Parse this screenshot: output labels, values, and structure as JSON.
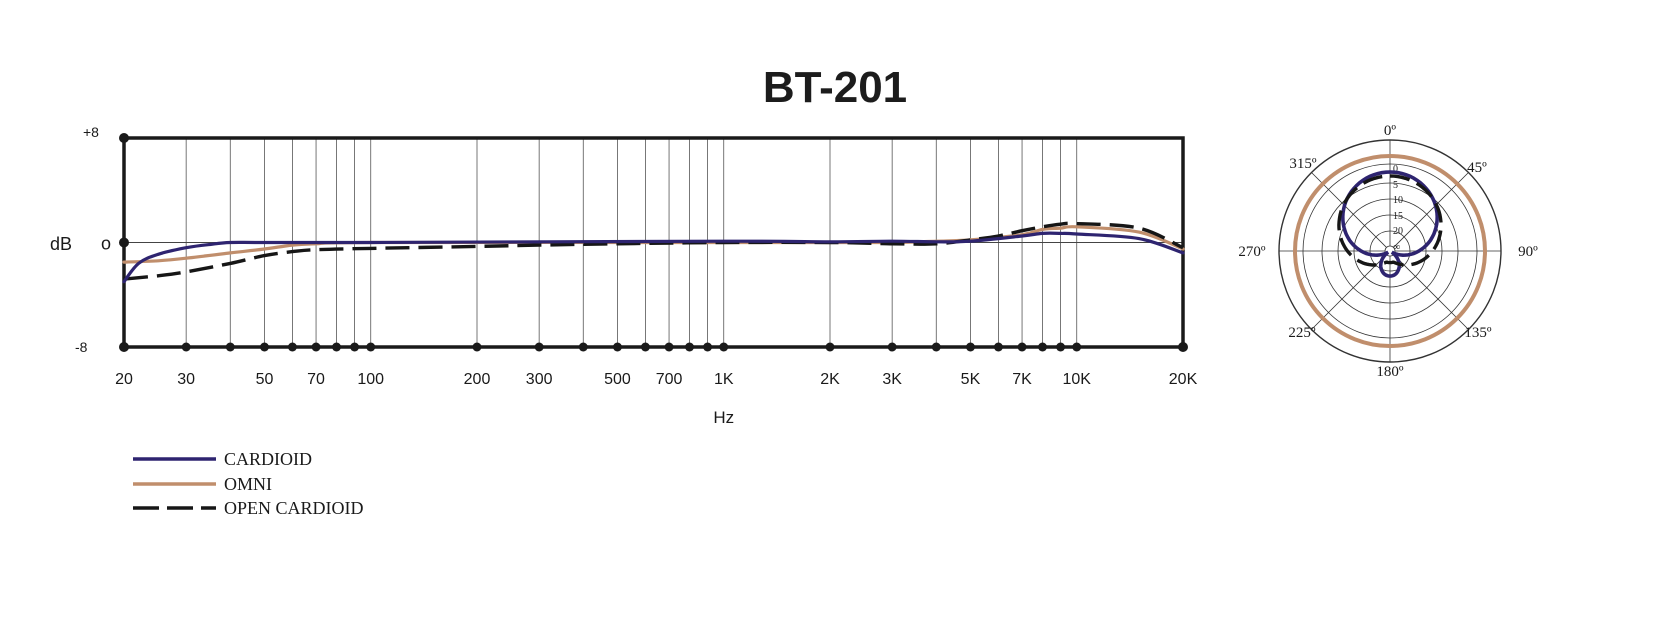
{
  "title": "BT-201",
  "chart_data": [
    {
      "type": "line",
      "title": "BT-201",
      "xlabel": "Hz",
      "ylabel": "dB",
      "x_scale": "log",
      "xlim": [
        20,
        20000
      ],
      "ylim": [
        -8,
        8
      ],
      "x_ticks": [
        {
          "value": 20,
          "label": "20"
        },
        {
          "value": 30,
          "label": "30"
        },
        {
          "value": 40,
          "label": ""
        },
        {
          "value": 50,
          "label": "50"
        },
        {
          "value": 60,
          "label": ""
        },
        {
          "value": 70,
          "label": "70"
        },
        {
          "value": 80,
          "label": ""
        },
        {
          "value": 90,
          "label": ""
        },
        {
          "value": 100,
          "label": "100"
        },
        {
          "value": 200,
          "label": "200"
        },
        {
          "value": 300,
          "label": "300"
        },
        {
          "value": 400,
          "label": ""
        },
        {
          "value": 500,
          "label": "500"
        },
        {
          "value": 600,
          "label": ""
        },
        {
          "value": 700,
          "label": "700"
        },
        {
          "value": 800,
          "label": ""
        },
        {
          "value": 900,
          "label": ""
        },
        {
          "value": 1000,
          "label": "1K"
        },
        {
          "value": 2000,
          "label": "2K"
        },
        {
          "value": 3000,
          "label": "3K"
        },
        {
          "value": 4000,
          "label": ""
        },
        {
          "value": 5000,
          "label": "5K"
        },
        {
          "value": 6000,
          "label": ""
        },
        {
          "value": 7000,
          "label": "7K"
        },
        {
          "value": 8000,
          "label": ""
        },
        {
          "value": 9000,
          "label": ""
        },
        {
          "value": 10000,
          "label": "10K"
        },
        {
          "value": 20000,
          "label": "20K"
        }
      ],
      "y_ticks": [
        {
          "value": 8,
          "label": "+8"
        },
        {
          "value": 0,
          "label": "o"
        },
        {
          "value": -8,
          "label": "-8"
        }
      ],
      "grid": true,
      "legend": "bottom-left",
      "series": [
        {
          "name": "CARDIOID",
          "color": "#2e2470",
          "dash": "solid",
          "points": [
            [
              20,
              -3.0
            ],
            [
              22,
              -1.6
            ],
            [
              25,
              -0.9
            ],
            [
              30,
              -0.4
            ],
            [
              35,
              -0.15
            ],
            [
              40,
              0
            ],
            [
              50,
              0
            ],
            [
              100,
              0
            ],
            [
              1000,
              0.1
            ],
            [
              2000,
              0.05
            ],
            [
              3000,
              0.1
            ],
            [
              4000,
              0.05
            ],
            [
              5000,
              0.1
            ],
            [
              7000,
              0.5
            ],
            [
              8000,
              0.7
            ],
            [
              9000,
              0.7
            ],
            [
              10000,
              0.65
            ],
            [
              15000,
              0.3
            ],
            [
              20000,
              -0.8
            ]
          ]
        },
        {
          "name": "OMNI",
          "color": "#c08e6c",
          "dash": "solid",
          "points": [
            [
              20,
              -1.5
            ],
            [
              25,
              -1.4
            ],
            [
              30,
              -1.2
            ],
            [
              40,
              -0.8
            ],
            [
              50,
              -0.5
            ],
            [
              60,
              -0.2
            ],
            [
              70,
              -0.1
            ],
            [
              100,
              0
            ],
            [
              1000,
              0
            ],
            [
              2000,
              0
            ],
            [
              3000,
              0
            ],
            [
              4000,
              0.1
            ],
            [
              5000,
              0.2
            ],
            [
              7000,
              0.6
            ],
            [
              8000,
              1.0
            ],
            [
              9000,
              1.1
            ],
            [
              10000,
              1.2
            ],
            [
              15000,
              0.8
            ],
            [
              20000,
              -0.5
            ]
          ]
        },
        {
          "name": "OPEN CARDIOID",
          "color": "#161616",
          "dash": "dashed",
          "points": [
            [
              20,
              -2.8
            ],
            [
              25,
              -2.55
            ],
            [
              30,
              -2.25
            ],
            [
              40,
              -1.6
            ],
            [
              50,
              -1.0
            ],
            [
              60,
              -0.7
            ],
            [
              70,
              -0.55
            ],
            [
              100,
              -0.45
            ],
            [
              200,
              -0.3
            ],
            [
              300,
              -0.2
            ],
            [
              500,
              -0.1
            ],
            [
              1000,
              0
            ],
            [
              2000,
              0
            ],
            [
              3000,
              -0.1
            ],
            [
              4000,
              -0.1
            ],
            [
              5000,
              0.2
            ],
            [
              6000,
              0.5
            ],
            [
              7000,
              0.9
            ],
            [
              8000,
              1.2
            ],
            [
              9000,
              1.4
            ],
            [
              10000,
              1.45
            ],
            [
              15000,
              1.1
            ],
            [
              20000,
              -0.4
            ]
          ]
        }
      ]
    },
    {
      "type": "polar",
      "angle_labels": [
        {
          "angle": 0,
          "label": "0º"
        },
        {
          "angle": 45,
          "label": "45º"
        },
        {
          "angle": 90,
          "label": "90º"
        },
        {
          "angle": 135,
          "label": "135º"
        },
        {
          "angle": 180,
          "label": "180º"
        },
        {
          "angle": 225,
          "label": "225º"
        },
        {
          "angle": 270,
          "label": "270º"
        },
        {
          "angle": 315,
          "label": "315º"
        }
      ],
      "ring_labels": [
        "0",
        "5",
        "10",
        "15",
        "20",
        "∞"
      ],
      "rlim_db": [
        -25,
        0
      ],
      "series": [
        {
          "name": "CARDIOID",
          "color": "#2e2470",
          "pattern": "cardioid"
        },
        {
          "name": "OMNI",
          "color": "#c08e6c",
          "pattern": "omni"
        },
        {
          "name": "OPEN CARDIOID",
          "color": "#161616",
          "dash": "dashed",
          "points": [
            [
              0,
              0
            ],
            [
              30,
              -1
            ],
            [
              60,
              -3
            ],
            [
              80,
              -6
            ],
            [
              90,
              -9
            ],
            [
              110,
              -15
            ],
            [
              130,
              -20
            ],
            [
              150,
              -22
            ],
            [
              170,
              -23
            ],
            [
              180,
              -23
            ],
            [
              190,
              -23
            ],
            [
              210,
              -22
            ],
            [
              230,
              -20
            ],
            [
              250,
              -15
            ],
            [
              270,
              -9
            ],
            [
              280,
              -6
            ],
            [
              300,
              -3
            ],
            [
              330,
              -1
            ]
          ]
        }
      ]
    }
  ]
}
